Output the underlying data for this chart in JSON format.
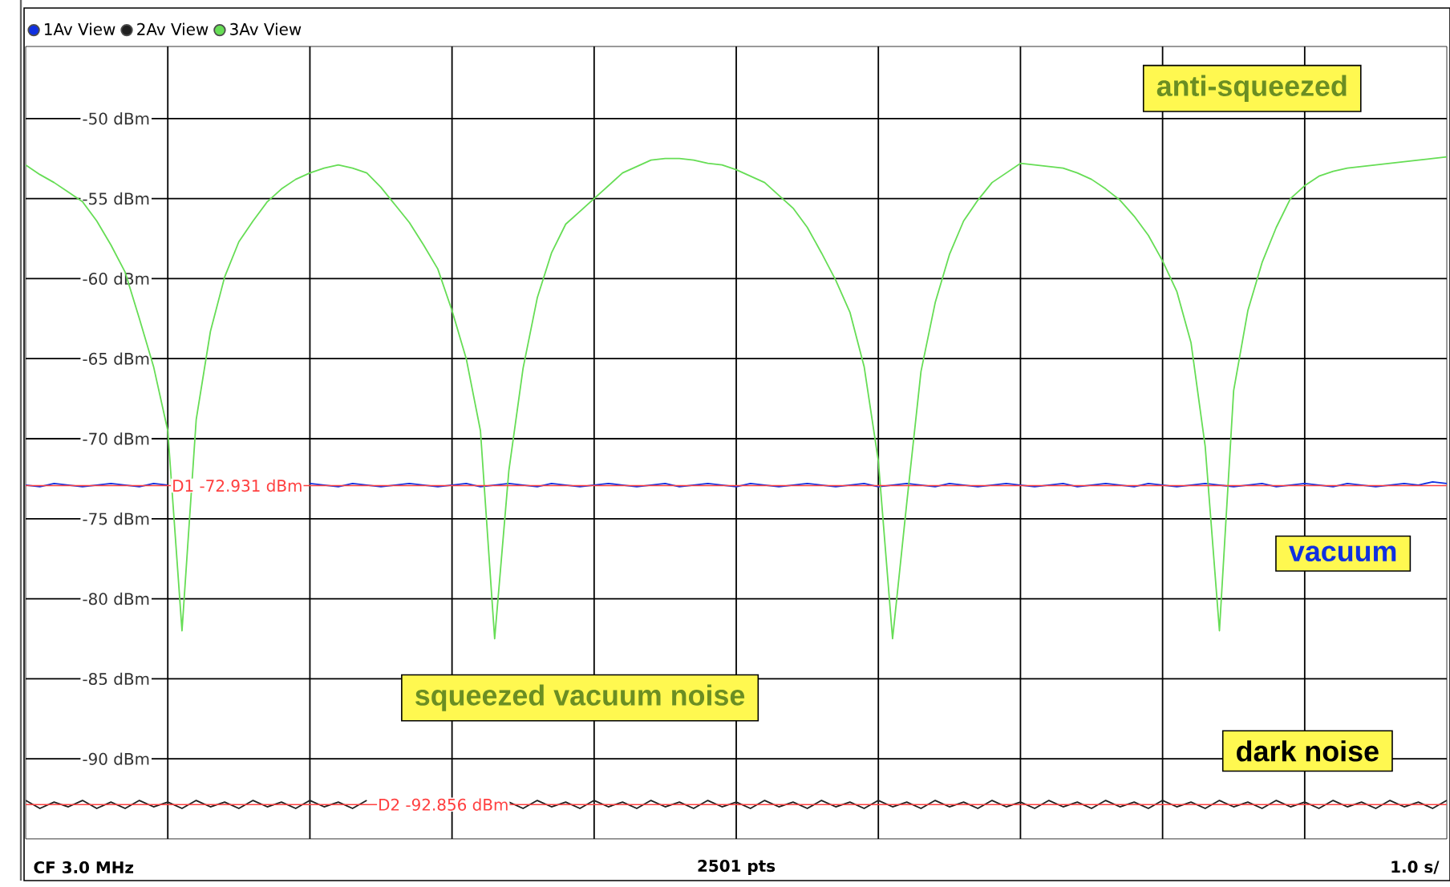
{
  "chart_data": {
    "type": "line",
    "ylim": [
      -95,
      -45.5
    ],
    "categories": [
      null,
      null,
      null,
      null,
      null,
      null,
      null,
      null,
      null,
      null,
      null,
      null,
      null,
      null,
      null,
      null,
      null,
      null,
      null,
      null,
      null,
      null,
      null,
      null,
      null,
      null,
      null,
      null,
      null,
      null,
      null,
      null,
      null,
      null,
      null,
      null,
      null,
      null,
      null,
      null,
      null,
      null,
      null,
      null,
      null,
      null,
      null,
      null,
      null,
      null,
      null,
      null,
      null,
      null,
      null,
      null,
      null,
      null,
      null,
      null,
      null,
      null,
      null,
      null,
      null,
      null,
      null,
      null,
      null,
      null,
      null,
      null,
      null,
      null,
      null,
      null,
      null,
      null,
      null,
      null,
      null,
      null,
      null,
      null,
      null,
      null,
      null,
      null,
      null,
      null,
      null,
      null,
      null,
      null,
      null,
      null,
      null,
      null,
      null,
      null,
      null
    ],
    "yticks": [
      {
        "value": -90,
        "label": "-90 dBm"
      },
      {
        "value": -85,
        "label": "-85 dBm"
      },
      {
        "value": -80,
        "label": "-80 dBm"
      },
      {
        "value": -75,
        "label": "-75 dBm"
      },
      {
        "value": -70,
        "label": "-70 dBm"
      },
      {
        "value": -65,
        "label": "-65 dBm"
      },
      {
        "value": -60,
        "label": "-60 dBm"
      },
      {
        "value": -55,
        "label": "-55 dBm"
      },
      {
        "value": -50,
        "label": "-50 dBm"
      }
    ],
    "tick_labels": "y",
    "grid": true,
    "legend": "top left",
    "series": [
      {
        "name": "1Av View",
        "color": "#1030e0",
        "values": [
          -72.9,
          -73.0,
          -72.8,
          -72.9,
          -73.0,
          -72.9,
          -72.8,
          -72.9,
          -73.0,
          -72.8,
          -72.9,
          null,
          null,
          null,
          null,
          null,
          null,
          null,
          null,
          null,
          -72.8,
          -72.9,
          -73.0,
          -72.8,
          -72.9,
          -73.0,
          -72.9,
          -72.8,
          -72.9,
          -73.0,
          -72.9,
          -72.8,
          -73.0,
          -72.9,
          -72.8,
          -72.9,
          -73.0,
          -72.8,
          -72.9,
          -73.0,
          -72.9,
          -72.8,
          -72.9,
          -73.0,
          -72.9,
          -72.8,
          -73.0,
          -72.9,
          -72.8,
          -72.9,
          -73.0,
          -72.8,
          -72.9,
          -73.0,
          -72.9,
          -72.8,
          -72.9,
          -73.0,
          -72.9,
          -72.8,
          -73.0,
          -72.9,
          -72.8,
          -72.9,
          -73.0,
          -72.8,
          -72.9,
          -73.0,
          -72.9,
          -72.8,
          -72.9,
          -73.0,
          -72.9,
          -72.8,
          -73.0,
          -72.9,
          -72.8,
          -72.9,
          -73.0,
          -72.8,
          -72.9,
          -73.0,
          -72.9,
          -72.8,
          -72.9,
          -73.0,
          -72.9,
          -72.8,
          -73.0,
          -72.9,
          -72.8,
          -72.9,
          -73.0,
          -72.8,
          -72.9,
          -73.0,
          -72.9,
          -72.8,
          -72.9,
          -72.7,
          -72.8
        ]
      },
      {
        "name": "2Av View",
        "color": "#202020",
        "values": [
          -92.6,
          -93.1,
          -92.7,
          -93.0,
          -92.6,
          -93.1,
          -92.7,
          -93.1,
          -92.6,
          -93.0,
          -92.7,
          -93.1,
          -92.6,
          -93.0,
          -92.7,
          -93.1,
          -92.6,
          -93.0,
          -92.7,
          -93.1,
          -92.6,
          -93.0,
          -92.7,
          -93.1,
          -92.6,
          null,
          null,
          null,
          null,
          null,
          null,
          null,
          null,
          null,
          -92.7,
          -93.1,
          -92.6,
          -93.0,
          -92.7,
          -93.1,
          -92.6,
          -93.0,
          -92.7,
          -93.1,
          -92.6,
          -93.0,
          -92.7,
          -93.1,
          -92.6,
          -93.0,
          -92.7,
          -93.1,
          -92.6,
          -93.0,
          -92.7,
          -93.1,
          -92.6,
          -93.0,
          -92.7,
          -93.1,
          -92.6,
          -93.0,
          -92.7,
          -93.1,
          -92.6,
          -93.0,
          -92.7,
          -93.1,
          -92.6,
          -93.0,
          -92.7,
          -93.1,
          -92.6,
          -93.0,
          -92.7,
          -93.1,
          -92.6,
          -93.0,
          -92.7,
          -93.1,
          -92.6,
          -93.0,
          -92.7,
          -93.1,
          -92.6,
          -93.0,
          -92.7,
          -93.1,
          -92.6,
          -93.0,
          -92.7,
          -93.1,
          -92.6,
          -93.0,
          -92.7,
          -93.1,
          -92.6,
          -93.0,
          -92.7,
          -93.1,
          -92.6
        ]
      },
      {
        "name": "3Av View",
        "color": "#66dd55",
        "values": [
          -52.9,
          -53.5,
          -54.0,
          -54.6,
          -55.2,
          -56.4,
          -57.9,
          -59.6,
          -62.5,
          -65.5,
          -69.5,
          -82.0,
          -68.8,
          -63.3,
          -59.9,
          -57.7,
          -56.4,
          -55.2,
          -54.4,
          -53.8,
          -53.4,
          -53.1,
          -52.9,
          -53.1,
          -53.4,
          -54.3,
          -55.4,
          -56.5,
          -57.9,
          -59.4,
          -62.0,
          -65.0,
          -69.5,
          -82.5,
          -72.0,
          -65.6,
          -61.2,
          -58.4,
          -56.6,
          -55.8,
          -55.0,
          -54.2,
          -53.4,
          -53.0,
          -52.6,
          -52.5,
          -52.5,
          -52.6,
          -52.8,
          -52.9,
          -53.2,
          -53.6,
          -54.0,
          -54.8,
          -55.6,
          -56.8,
          -58.4,
          -60.1,
          -62.1,
          -65.5,
          -71.4,
          -82.5,
          -74.0,
          -65.8,
          -61.5,
          -58.5,
          -56.4,
          -55.1,
          -54.0,
          -53.4,
          -52.8,
          -52.9,
          -53.0,
          -53.1,
          -53.4,
          -53.8,
          -54.4,
          -55.1,
          -56.1,
          -57.3,
          -58.9,
          -60.8,
          -64.0,
          -70.5,
          -82.0,
          -67.0,
          -62.0,
          -59.0,
          -56.8,
          -55.0,
          -54.2,
          -53.6,
          -53.3,
          -53.1,
          -53.0,
          -52.9,
          -52.8,
          -52.7,
          -52.6,
          -52.5,
          -52.4
        ]
      }
    ],
    "ref_lines": [
      {
        "axis": "y",
        "value": -72.931,
        "label": "D1  -72.931 dBm",
        "color": "#ff4040"
      },
      {
        "axis": "y",
        "value": -92.856,
        "label": "D2  -92.856 dBm",
        "color": "#ff4040"
      }
    ],
    "annotations": [
      "anti-squeezed",
      "vacuum",
      "squeezed vacuum noise",
      "dark noise",
      "CF 3.0 MHz",
      "2501 pts",
      "1.0 s/"
    ]
  }
}
